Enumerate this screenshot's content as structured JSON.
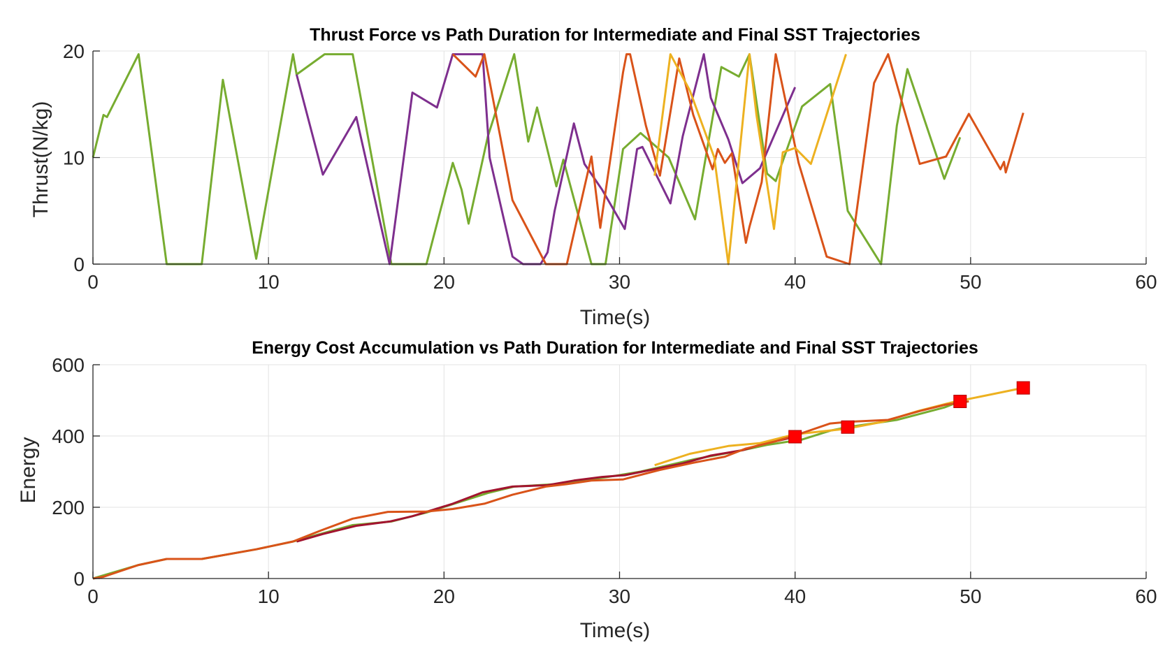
{
  "chart_data": [
    {
      "type": "line",
      "title": "Thrust Force vs Path Duration for Intermediate and Final SST Trajectories",
      "xlabel": "Time(s)",
      "ylabel": "Thrust(N/kg)",
      "xlim": [
        0,
        60
      ],
      "ylim": [
        0,
        20
      ],
      "xticks": [
        0,
        10,
        20,
        30,
        40,
        50,
        60
      ],
      "yticks": [
        0,
        10,
        20
      ],
      "grid": true,
      "series": [
        {
          "color": "#77ac30",
          "x": [
            0,
            0.6,
            0.8,
            2.6,
            4.2,
            6.2,
            7.4,
            9.3,
            11.4,
            11.6,
            13.2,
            14.8,
            17.0,
            19.0,
            20.5,
            21.0,
            21.4,
            22.5,
            24.0,
            24.8,
            25.3,
            26.4,
            26.8,
            28.4,
            29.2,
            30.2,
            31.2,
            32.8,
            34.3,
            35.8,
            36.8,
            37.4,
            38.4,
            38.9,
            40.4,
            42.0,
            43.0,
            44.9,
            45.8,
            46.4,
            48.5,
            49.4
          ],
          "y": [
            10,
            14,
            13.8,
            19.7,
            0,
            0,
            17.3,
            0.5,
            19.7,
            17.8,
            19.7,
            19.7,
            0,
            0,
            9.5,
            7,
            3.8,
            12,
            19.7,
            11.5,
            14.7,
            7.3,
            9.8,
            0,
            0,
            10.8,
            12.3,
            10,
            4.2,
            18.5,
            17.6,
            19.7,
            8.5,
            7.8,
            14.8,
            16.9,
            5,
            0,
            13,
            18.3,
            8,
            11.9
          ]
        },
        {
          "color": "#7e2f8e",
          "x": [
            11.6,
            13.1,
            15.0,
            16.9,
            18.2,
            19.6,
            20.5,
            22.2,
            22.6,
            23.9,
            24.5,
            25.5,
            25.9,
            26.3,
            27.4,
            28.0,
            29.0,
            30.3,
            31.0,
            31.3,
            32.9,
            33.6,
            34.8,
            35.2,
            36.2,
            37.0,
            38.0,
            40.0
          ],
          "y": [
            17.8,
            8.4,
            13.8,
            0,
            16.1,
            14.7,
            19.7,
            19.7,
            10,
            0.7,
            0,
            0,
            1.1,
            5,
            13.2,
            9.4,
            7,
            3.3,
            10.8,
            11,
            5.7,
            12,
            19.7,
            15.6,
            11.7,
            7.6,
            9,
            16.6
          ]
        },
        {
          "color": "#d95319",
          "x": [
            20.5,
            21.8,
            22.3,
            23.9,
            25.8,
            27.0,
            28.4,
            28.9,
            30.2,
            30.4,
            30.6,
            31.5,
            32.3,
            33.4,
            34.2,
            35.3,
            35.6,
            36.0,
            36.4,
            37.2,
            37.4,
            38.1,
            38.9,
            40.2,
            41.8,
            43.1,
            44.5,
            45.3,
            47.1,
            48.6,
            49.9,
            51.7,
            51.9,
            52.0,
            53.0
          ],
          "y": [
            19.7,
            17.6,
            19.7,
            6,
            0,
            0,
            10.1,
            3.4,
            18,
            19.7,
            19.7,
            13,
            8.3,
            19.3,
            14,
            8.9,
            10.8,
            9.5,
            10.4,
            2,
            3.5,
            7.7,
            19.7,
            9.5,
            0.7,
            0,
            17,
            19.7,
            9.4,
            10.1,
            14.1,
            8.9,
            9.6,
            8.6,
            14.2
          ]
        },
        {
          "color": "#edb120",
          "x": [
            32.0,
            32.9,
            34.0,
            35.4,
            36.2,
            37.4,
            37.8,
            38.8,
            39.3,
            40.0,
            40.9,
            42.9
          ],
          "y": [
            8.3,
            19.7,
            16.3,
            10,
            0,
            19.7,
            14,
            3.3,
            10.5,
            10.9,
            9.4,
            19.7
          ]
        }
      ]
    },
    {
      "type": "line",
      "title": "Energy Cost Accumulation vs Path Duration for Intermediate and Final SST Trajectories",
      "xlabel": "Time(s)",
      "ylabel": "Energy",
      "xlim": [
        0,
        60
      ],
      "ylim": [
        0,
        600
      ],
      "xticks": [
        0,
        10,
        20,
        30,
        40,
        50,
        60
      ],
      "yticks": [
        0,
        200,
        400,
        600
      ],
      "grid": true,
      "series": [
        {
          "color": "#77ac30",
          "x": [
            0,
            2.6,
            4.2,
            6.2,
            9.3,
            11.4,
            14.8,
            17.0,
            19.0,
            22.5,
            24.0,
            26.4,
            29.2,
            31.2,
            34.3,
            36.8,
            38.4,
            40.4,
            42.0,
            43.0,
            45.8,
            48.5,
            49.4
          ],
          "y": [
            0,
            38,
            55,
            55,
            82,
            104,
            150,
            160,
            185,
            240,
            258,
            265,
            284,
            300,
            335,
            358,
            375,
            390,
            415,
            425,
            445,
            480,
            497
          ]
        },
        {
          "color": "#a2142f",
          "x": [
            11.6,
            13.1,
            15.0,
            16.9,
            18.2,
            20.5,
            22.2,
            23.9,
            25.9,
            27.4,
            29.0,
            30.3,
            31.3,
            33.6,
            35.2,
            37.0,
            38.0,
            40.0
          ],
          "y": [
            104,
            125,
            148,
            160,
            175,
            210,
            242,
            258,
            262,
            275,
            285,
            290,
            300,
            323,
            345,
            360,
            375,
            398
          ]
        },
        {
          "color": "#edb120",
          "x": [
            32.0,
            34.0,
            36.2,
            38.0,
            40.0,
            42.9,
            45.0,
            47.0,
            49.0,
            51.0,
            53.0
          ],
          "y": [
            318,
            350,
            372,
            380,
            405,
            420,
            440,
            470,
            495,
            515,
            535
          ]
        },
        {
          "color": "#d95319",
          "x": [
            0,
            0.6,
            2.6,
            4.2,
            6.2,
            9.3,
            11.4,
            13.0,
            14.8,
            16.8,
            19.0,
            20.5,
            22.3,
            23.9,
            25.8,
            27.0,
            28.4,
            30.2,
            32.3,
            34.2,
            36.0,
            37.2,
            38.9,
            40.2,
            42.0,
            43.1,
            45.3,
            47.1,
            48.6,
            49.9
          ],
          "y": [
            0,
            5,
            38,
            55,
            55,
            82,
            104,
            135,
            168,
            187,
            188,
            195,
            210,
            235,
            258,
            265,
            275,
            278,
            305,
            325,
            342,
            365,
            385,
            405,
            435,
            440,
            445,
            470,
            488,
            497
          ]
        }
      ],
      "markers": {
        "color": "#ff0000",
        "x": [
          40.0,
          43.0,
          49.4,
          53.0
        ],
        "y": [
          398,
          425,
          497,
          535
        ]
      }
    }
  ]
}
